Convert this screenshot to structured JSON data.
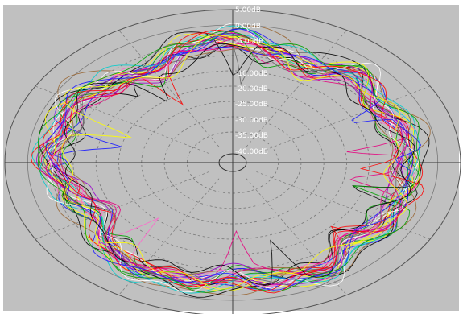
{
  "chart_data": {
    "type": "line",
    "projection": "polar",
    "radial_unit": "dB",
    "radial_range": [
      -45,
      5
    ],
    "radial_ticks": [
      "5.00dB",
      "0.00dB",
      "-5.00dB",
      "-10.00dB",
      "-20.00dB",
      "-25.00dB",
      "-30.00dB",
      "-35.00dB",
      "-40.00dB"
    ],
    "angle_range_deg": [
      0,
      360
    ],
    "grid": true,
    "series_count": 30,
    "envelope_db": [
      -7,
      -6,
      -8,
      -5,
      -9,
      -8,
      -4,
      -6,
      -10,
      -7,
      -5,
      -6,
      -4,
      -8,
      -11,
      -6,
      -4,
      -5,
      -7,
      -5,
      -4,
      -9,
      -6,
      -5
    ],
    "colors": [
      "#e6007e",
      "#1a1aff",
      "#000000",
      "#ff0000",
      "#00a000",
      "#ffff00",
      "#ff66cc",
      "#00cccc",
      "#ffffff",
      "#9900cc",
      "#996633",
      "#666666"
    ],
    "background": "#c0c0c0"
  }
}
